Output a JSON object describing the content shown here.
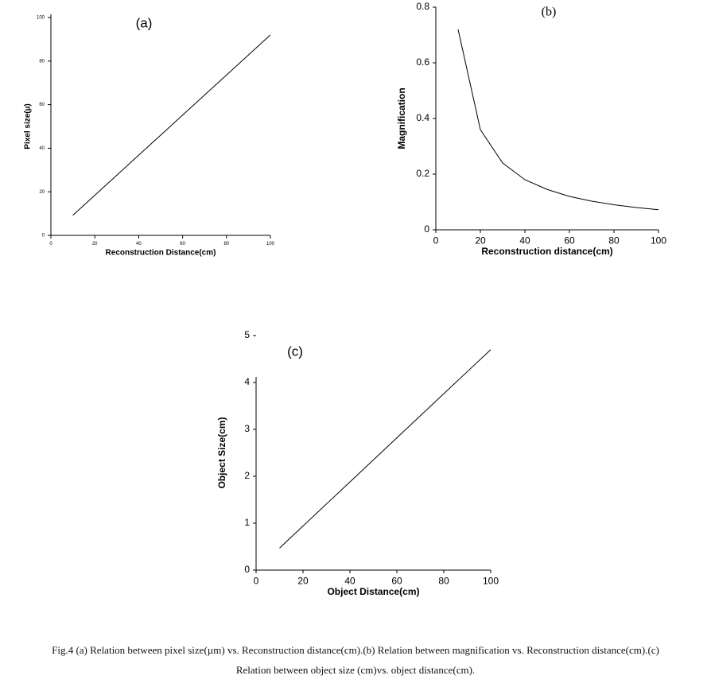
{
  "chart_data": [
    {
      "type": "line",
      "title": "(a)",
      "x_label": "Reconstruction Distance(cm)",
      "y_label": "Pixel size(µ)",
      "x": [
        10,
        20,
        30,
        40,
        50,
        60,
        70,
        80,
        90,
        100
      ],
      "values": [
        9.2,
        18.4,
        27.6,
        36.8,
        46,
        55.2,
        64.4,
        73.6,
        82.8,
        92
      ],
      "color": "#000000",
      "xlim": [
        0,
        100
      ],
      "ylim": [
        0,
        100
      ],
      "xticks": [
        0,
        20,
        40,
        60,
        80,
        100
      ],
      "yticks": [
        0,
        20,
        40,
        60,
        80,
        100
      ]
    },
    {
      "type": "line",
      "title": "(b)",
      "x_label": "Reconstruction distance(cm)",
      "y_label": "Magnification",
      "x": [
        10,
        20,
        30,
        40,
        50,
        60,
        70,
        80,
        90,
        100
      ],
      "values": [
        0.72,
        0.36,
        0.24,
        0.18,
        0.145,
        0.12,
        0.103,
        0.09,
        0.08,
        0.072
      ],
      "color": "#000000",
      "xlim": [
        0,
        100
      ],
      "ylim": [
        0,
        0.8
      ],
      "xticks": [
        0,
        20,
        40,
        60,
        80,
        100
      ],
      "yticks": [
        0,
        0.2,
        0.4,
        0.6,
        0.8
      ]
    },
    {
      "type": "line",
      "title": "(c)",
      "x_label": "Object Distance(cm)",
      "y_label": "Object Size(cm)",
      "x": [
        10,
        20,
        30,
        40,
        50,
        60,
        70,
        80,
        90,
        100
      ],
      "values": [
        0.47,
        0.94,
        1.41,
        1.88,
        2.35,
        2.82,
        3.29,
        3.76,
        4.23,
        4.7
      ],
      "color": "#000000",
      "xlim": [
        0,
        100
      ],
      "ylim": [
        0,
        5
      ],
      "xticks": [
        0,
        20,
        40,
        60,
        80,
        100
      ],
      "yticks": [
        0,
        1,
        2,
        3,
        4,
        5
      ]
    }
  ],
  "caption": [
    "Fig.4 (a) Relation between pixel size(µm) vs. Reconstruction distance(cm).(b) Relation between magnification vs. Reconstruction distance(cm).(c)",
    "Relation between object size (cm)vs. object distance(cm)."
  ]
}
